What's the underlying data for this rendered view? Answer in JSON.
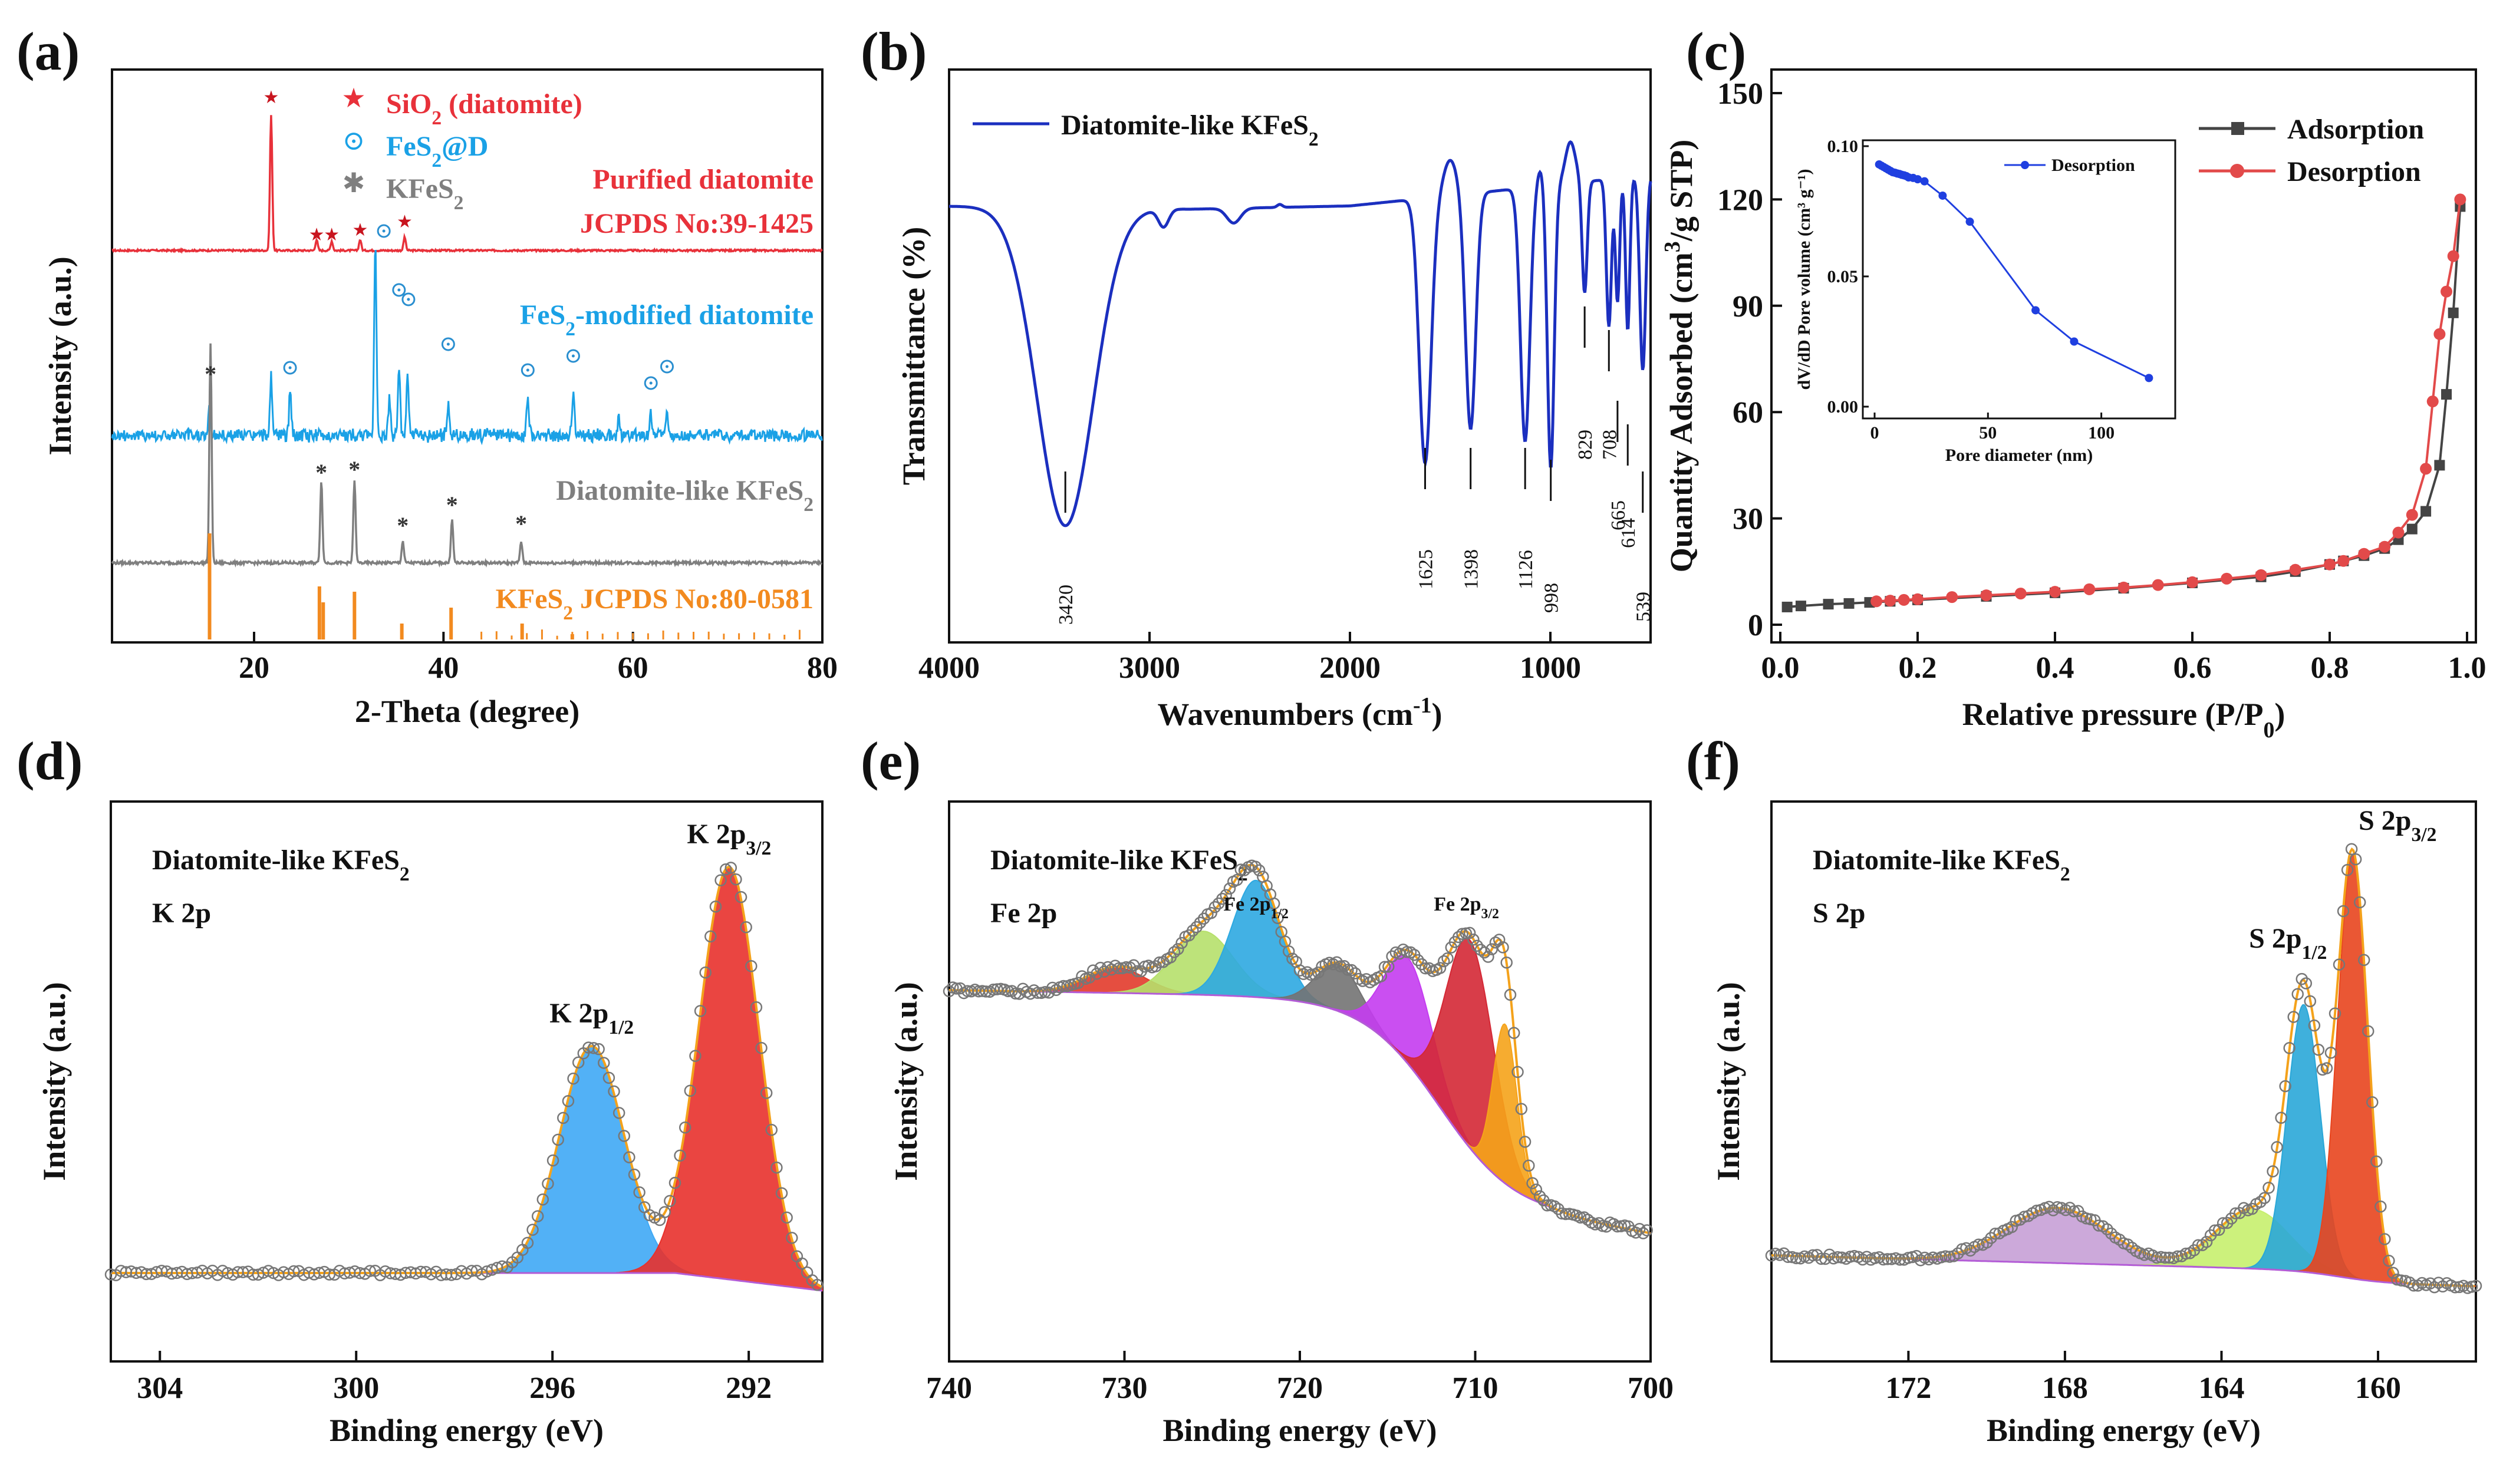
{
  "colors": {
    "red": "#e8313a",
    "blue": "#1aa1e6",
    "gray": "#7f7f7f",
    "orange": "#f28a1f",
    "navy": "#1b2fbf",
    "black": "#333333",
    "ads": "#444444",
    "des": "#e24a4a",
    "inset": "#1f3fe0",
    "starRed": "#c8141e"
  },
  "chart_data": [
    {
      "panel": "(a)",
      "type": "line",
      "xlabel": "2-Theta (degree)",
      "ylabel": "Intensity (a.u.)",
      "xlim": [
        5,
        80
      ],
      "xticks": [
        "20",
        "40",
        "60",
        "80"
      ],
      "legend": [
        {
          "symbol": "★",
          "label": "SiO",
          "sub": "2",
          "rest": " (diatomite)",
          "color": "#e8313a"
        },
        {
          "symbol": "⊙",
          "label": "FeS",
          "sub": "2",
          "rest": "@D",
          "color": "#1aa1e6"
        },
        {
          "symbol": "✱",
          "label": "KFeS",
          "sub": "2",
          "rest": "",
          "color": "#7f7f7f"
        }
      ],
      "series": [
        {
          "name": "Purified diatomite",
          "color": "#e8313a",
          "peaks": [
            [
              21.8,
              1.0
            ],
            [
              26.6,
              0.08
            ],
            [
              28.2,
              0.07
            ],
            [
              31.2,
              0.08
            ],
            [
              35.9,
              0.1
            ]
          ],
          "text": [
            "Purified diatomite",
            "JCPDS No:39-1425"
          ]
        },
        {
          "name": "FeS2-modified diatomite",
          "color": "#1aa1e6",
          "peaks": [
            [
              15.3,
              0.15
            ],
            [
              21.8,
              0.3
            ],
            [
              23.8,
              0.22
            ],
            [
              32.8,
              1.0
            ],
            [
              34.3,
              0.2
            ],
            [
              35.3,
              0.35
            ],
            [
              36.2,
              0.32
            ],
            [
              40.5,
              0.15
            ],
            [
              48.9,
              0.2
            ],
            [
              53.7,
              0.24
            ],
            [
              58.5,
              0.1
            ],
            [
              61.9,
              0.12
            ],
            [
              63.6,
              0.16
            ]
          ],
          "text": [
            "FeS",
            "2",
            "-modified diatomite"
          ]
        },
        {
          "name": "Diatomite-like KFeS2",
          "color": "#7f7f7f",
          "peaks": [
            [
              15.4,
              1.0
            ],
            [
              27.1,
              0.38
            ],
            [
              30.6,
              0.38
            ],
            [
              35.7,
              0.1
            ],
            [
              40.9,
              0.2
            ],
            [
              48.2,
              0.1
            ]
          ],
          "text": [
            "Diatomite-like KFeS",
            "2",
            ""
          ]
        },
        {
          "name": "KFeS2 JCPDS No:80-0581",
          "color": "#f28a1f",
          "peaks": [
            [
              15.3,
              1.0
            ],
            [
              26.9,
              0.5
            ],
            [
              27.3,
              0.35
            ],
            [
              30.6,
              0.45
            ],
            [
              35.6,
              0.15
            ],
            [
              40.8,
              0.3
            ],
            [
              48.3,
              0.15
            ],
            [
              53.6,
              0.05
            ]
          ],
          "text": [
            "KFeS",
            "2",
            " JCPDS No:80-0581"
          ]
        }
      ]
    },
    {
      "panel": "(b)",
      "type": "line",
      "xlabel": "Wavenumbers (cm",
      "xlabel_sup": "-1",
      "xlabel_end": ")",
      "ylabel": "Transmittance (%)",
      "xlim": [
        4000,
        500
      ],
      "xticks": [
        "4000",
        "3000",
        "2000",
        "1000"
      ],
      "legend": "Diatomite-like KFeS",
      "legend_sub": "2",
      "bands": [
        "3420",
        "1625",
        "1398",
        "1126",
        "998",
        "829",
        "708",
        "665",
        "614",
        "539"
      ],
      "color": "#1b2fbf"
    },
    {
      "panel": "(c)",
      "type": "line",
      "xlabel": "Relative pressure (P/P",
      "xlabel_sub": "0",
      "xlabel_end": ")",
      "ylabel": "Quantity Adsorbed (cm",
      "ylabel_sup": "3",
      "ylabel_end": "/g STP)",
      "xlim": [
        0,
        1
      ],
      "ylim": [
        0,
        150
      ],
      "xticks": [
        "0.0",
        "0.2",
        "0.4",
        "0.6",
        "0.8",
        "1.0"
      ],
      "yticks": [
        "0",
        "30",
        "60",
        "90",
        "120",
        "150"
      ],
      "series": [
        {
          "name": "Adsorption",
          "color": "#444444",
          "x": [
            0.01,
            0.03,
            0.07,
            0.1,
            0.13,
            0.16,
            0.2,
            0.3,
            0.4,
            0.5,
            0.6,
            0.7,
            0.75,
            0.8,
            0.82,
            0.85,
            0.88,
            0.9,
            0.92,
            0.94,
            0.96,
            0.97,
            0.98,
            0.99
          ],
          "y": [
            5,
            5.3,
            5.8,
            6,
            6.3,
            6.6,
            7,
            8,
            9,
            10.3,
            11.8,
            13.5,
            15,
            17,
            18,
            19.5,
            21.5,
            24,
            27,
            32,
            45,
            65,
            88,
            118
          ]
        },
        {
          "name": "Desorption",
          "color": "#e24a4a",
          "x": [
            0.99,
            0.98,
            0.97,
            0.96,
            0.95,
            0.94,
            0.92,
            0.9,
            0.88,
            0.85,
            0.82,
            0.8,
            0.75,
            0.7,
            0.65,
            0.6,
            0.55,
            0.5,
            0.45,
            0.4,
            0.35,
            0.3,
            0.25,
            0.2,
            0.18,
            0.16,
            0.14
          ],
          "y": [
            120,
            104,
            94,
            82,
            63,
            44,
            31,
            26,
            22,
            20,
            18,
            17,
            15.5,
            14,
            13,
            12,
            11.2,
            10.5,
            10,
            9.3,
            8.8,
            8.3,
            7.8,
            7.2,
            7,
            6.8,
            6.6
          ]
        }
      ],
      "inset": {
        "xlabel": "Pore diameter (nm)",
        "ylabel": "dV/dD Pore volume (cm³ g⁻¹)",
        "xticks": [
          "0",
          "50",
          "100"
        ],
        "yticks": [
          "0.00",
          "0.05",
          "0.10"
        ],
        "legend": "Desorption",
        "x": [
          2,
          3,
          4,
          5,
          6,
          7,
          8,
          9,
          10,
          11,
          12,
          13,
          14,
          15,
          17,
          19,
          22,
          30,
          42,
          71,
          88,
          121
        ],
        "y": [
          0.093,
          0.0925,
          0.092,
          0.0915,
          0.091,
          0.0905,
          0.09,
          0.0898,
          0.0895,
          0.0893,
          0.089,
          0.0888,
          0.0885,
          0.088,
          0.0878,
          0.0873,
          0.0865,
          0.081,
          0.071,
          0.037,
          0.025,
          0.011
        ]
      }
    },
    {
      "panel": "(d)",
      "type": "area",
      "xlabel": "Binding energy (eV)",
      "ylabel": "Intensity (a.u.)",
      "xlim": [
        305,
        290.5
      ],
      "xticks": [
        "304",
        "300",
        "296",
        "292"
      ],
      "title1": "Diatomite-like KFeS",
      "title1_sub": "2",
      "title2": "K 2p",
      "peaks": [
        {
          "label": "K 2p",
          "sub": "1/2",
          "center": 295.2,
          "height": 0.55,
          "fwhm": 1.55,
          "color": "#3fa9f5"
        },
        {
          "label": "K 2p",
          "sub": "3/2",
          "center": 292.4,
          "height": 1.0,
          "fwhm": 1.45,
          "color": "#e8312c"
        }
      ]
    },
    {
      "panel": "(e)",
      "type": "area",
      "xlabel": "Binding energy (eV)",
      "ylabel": "Intensity (a.u.)",
      "xlim": [
        740,
        700
      ],
      "xticks": [
        "740",
        "730",
        "720",
        "710",
        "700"
      ],
      "title1": "Diatomite-like KFeS",
      "title1_sub": "2",
      "title2": "Fe 2p",
      "labels": [
        {
          "text": "Fe 2p",
          "sub": "1/2",
          "x": 722.5
        },
        {
          "text": "Fe 2p",
          "sub": "3/2",
          "x": 710.5
        }
      ],
      "peaks": [
        {
          "center": 730.5,
          "height": 0.12,
          "fwhm": 4,
          "color": "#e23b2b"
        },
        {
          "center": 725.5,
          "height": 0.3,
          "fwhm": 4,
          "color": "#b6e06b"
        },
        {
          "center": 722.5,
          "height": 0.55,
          "fwhm": 3.2,
          "color": "#2da9e1"
        },
        {
          "center": 717.8,
          "height": 0.22,
          "fwhm": 3,
          "color": "#737373"
        },
        {
          "center": 713.8,
          "height": 0.5,
          "fwhm": 3.2,
          "color": "#c43cf0"
        },
        {
          "center": 710.3,
          "height": 0.98,
          "fwhm": 3.2,
          "color": "#d42835"
        },
        {
          "center": 708.3,
          "height": 0.75,
          "fwhm": 1.6,
          "color": "#f5a31a"
        }
      ]
    },
    {
      "panel": "(f)",
      "type": "area",
      "xlabel": "Binding energy (eV)",
      "ylabel": "Intensity (a.u.)",
      "xlim": [
        175.5,
        157.5
      ],
      "xticks": [
        "172",
        "168",
        "164",
        "160"
      ],
      "title1": "Diatomite-like KFeS",
      "title1_sub": "2",
      "title2": "S 2p",
      "labels": [
        {
          "text": "S 2p",
          "sub": "1/2",
          "x": 161.8
        },
        {
          "text": "S 2p",
          "sub": "3/2",
          "x": 160.6
        }
      ],
      "peaks": [
        {
          "center": 168.2,
          "height": 0.13,
          "fwhm": 3,
          "color": "#c7a0d6"
        },
        {
          "center": 163.2,
          "height": 0.14,
          "fwhm": 2.2,
          "color": "#c6ef6e"
        },
        {
          "center": 161.9,
          "height": 0.63,
          "fwhm": 1.0,
          "color": "#2aa7d8"
        },
        {
          "center": 160.65,
          "height": 1.0,
          "fwhm": 0.9,
          "color": "#e8451e"
        }
      ]
    }
  ]
}
